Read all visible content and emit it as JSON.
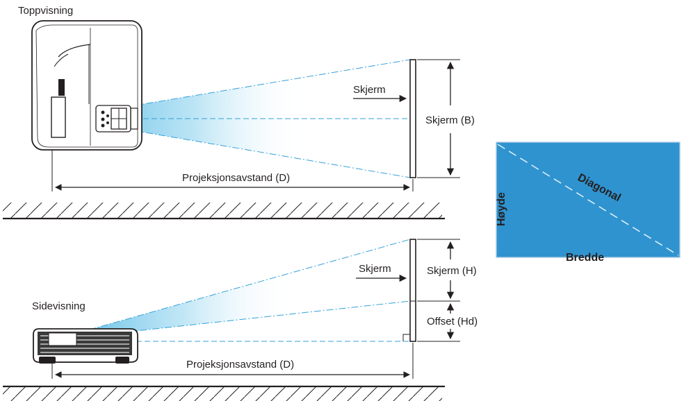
{
  "top_view": {
    "title": "Toppvisning",
    "screen_label": "Skjerm",
    "screen_size_label": "Skjerm (B)",
    "distance_label": "Projeksjonsavstand (D)"
  },
  "side_view": {
    "title": "Sidevisning",
    "screen_label": "Skjerm",
    "screen_size_label": "Skjerm (H)",
    "offset_label": "Offset (Hd)",
    "distance_label": "Projeksjonsavstand (D)"
  },
  "screen_box": {
    "height_label": "Høyde",
    "diagonal_label": "Diagonal",
    "width_label": "Bredde"
  },
  "colors": {
    "screen_fill": "#2f93cf",
    "beam": "#5fc1e8",
    "dash_line": "#35a0d8",
    "ink": "#231f20"
  }
}
